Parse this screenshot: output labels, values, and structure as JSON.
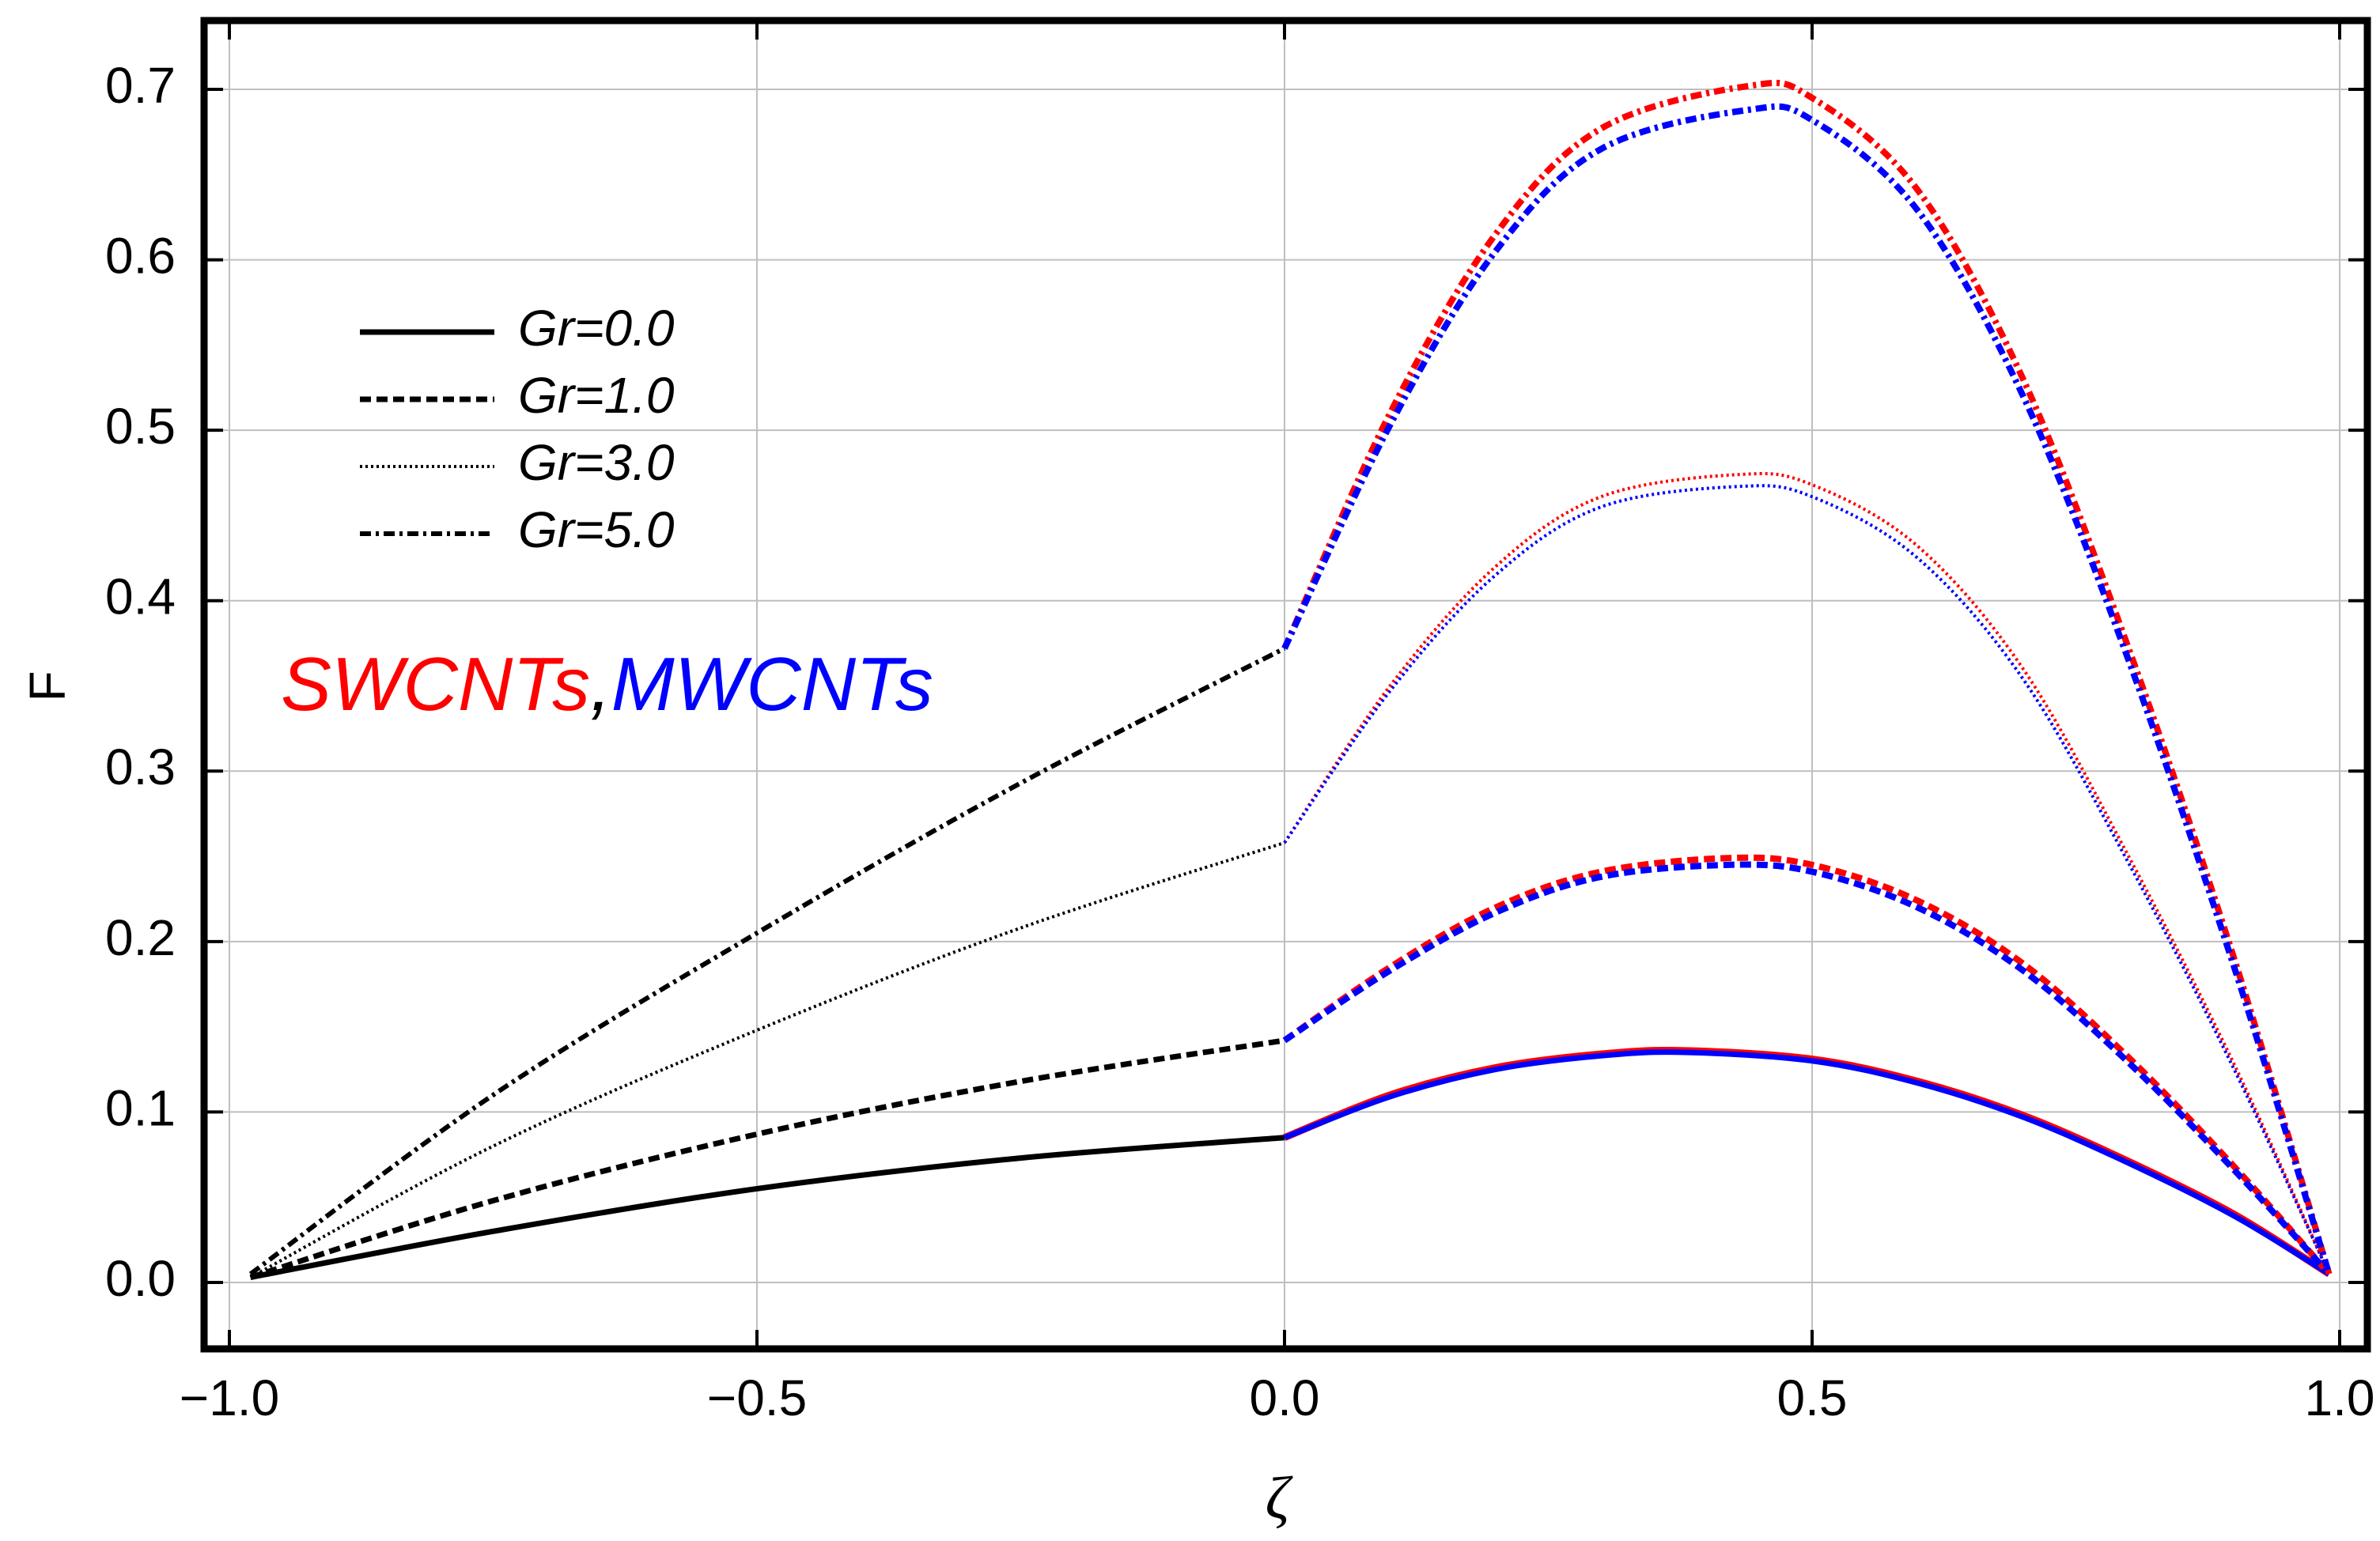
{
  "chart_data": {
    "type": "line",
    "xlabel": "ζ",
    "ylabel": "F",
    "xlim": [
      -1.0,
      1.0
    ],
    "ylim": [
      -0.04,
      0.72
    ],
    "xticks": [
      -1.0,
      -0.5,
      0.0,
      0.5,
      1.0
    ],
    "xtick_labels": [
      "−1.0",
      "−0.5",
      "0.0",
      "0.5",
      "1.0"
    ],
    "yticks": [
      0.0,
      0.1,
      0.2,
      0.3,
      0.4,
      0.5,
      0.6,
      0.7
    ],
    "ytick_labels": [
      "0.0",
      "0.1",
      "0.2",
      "0.3",
      "0.4",
      "0.5",
      "0.6",
      "0.7"
    ],
    "grid": true,
    "legend_position": "top-left",
    "legend": [
      {
        "label": "Gr=0.0",
        "style": "solid"
      },
      {
        "label": "Gr=1.0",
        "style": "dashed"
      },
      {
        "label": "Gr=3.0",
        "style": "dotted"
      },
      {
        "label": "Gr=5.0",
        "style": "dashdot"
      }
    ],
    "annotation": {
      "swcnts": "SWCNTs",
      "separator": ",",
      "mwcnts": "MWCNTs"
    },
    "colors": {
      "fluid": "#000000",
      "swcnts": "#ff0000",
      "mwcnts": "#0000ff"
    },
    "series": [
      {
        "name": "Gr=0.0 fluid region",
        "style": "solid",
        "color": "#000000",
        "width": 7,
        "x": [
          -0.98,
          -0.75,
          -0.5,
          -0.25,
          0.0
        ],
        "y": [
          0.003,
          0.03,
          0.055,
          0.073,
          0.085
        ]
      },
      {
        "name": "Gr=1.0 fluid region",
        "style": "dashed",
        "color": "#000000",
        "width": 7,
        "x": [
          -0.98,
          -0.75,
          -0.5,
          -0.25,
          0.0
        ],
        "y": [
          0.003,
          0.048,
          0.087,
          0.118,
          0.142
        ]
      },
      {
        "name": "Gr=3.0 fluid region",
        "style": "dotted",
        "color": "#000000",
        "width": 4,
        "x": [
          -0.98,
          -0.75,
          -0.5,
          -0.25,
          0.0
        ],
        "y": [
          0.003,
          0.08,
          0.148,
          0.208,
          0.258
        ]
      },
      {
        "name": "Gr=5.0 fluid region",
        "style": "dashdot",
        "color": "#000000",
        "width": 6,
        "x": [
          -0.98,
          -0.75,
          -0.5,
          -0.25,
          0.0
        ],
        "y": [
          0.005,
          0.11,
          0.205,
          0.293,
          0.372
        ]
      },
      {
        "name": "Gr=0.0 SWCNTs",
        "style": "solid",
        "color": "#ff0000",
        "width": 9,
        "x": [
          0.0,
          0.1,
          0.2,
          0.3,
          0.38,
          0.5,
          0.6,
          0.7,
          0.8,
          0.9,
          0.99
        ],
        "y": [
          0.085,
          0.11,
          0.126,
          0.134,
          0.136,
          0.131,
          0.118,
          0.098,
          0.071,
          0.04,
          0.005
        ]
      },
      {
        "name": "Gr=0.0 MWCNTs",
        "style": "solid",
        "color": "#0000ff",
        "width": 7,
        "x": [
          0.0,
          0.1,
          0.2,
          0.3,
          0.38,
          0.5,
          0.6,
          0.7,
          0.8,
          0.9,
          0.99
        ],
        "y": [
          0.085,
          0.109,
          0.125,
          0.133,
          0.135,
          0.13,
          0.117,
          0.097,
          0.07,
          0.039,
          0.005
        ]
      },
      {
        "name": "Gr=1.0 SWCNTs",
        "style": "dashed",
        "color": "#ff0000",
        "width": 8,
        "x": [
          0.0,
          0.1,
          0.2,
          0.3,
          0.42,
          0.5,
          0.6,
          0.7,
          0.8,
          0.9,
          0.99
        ],
        "y": [
          0.142,
          0.185,
          0.22,
          0.241,
          0.249,
          0.245,
          0.224,
          0.187,
          0.132,
          0.068,
          0.005
        ]
      },
      {
        "name": "Gr=1.0 MWCNTs",
        "style": "dashed",
        "color": "#0000ff",
        "width": 8,
        "x": [
          0.0,
          0.1,
          0.2,
          0.3,
          0.42,
          0.5,
          0.6,
          0.7,
          0.8,
          0.9,
          0.99
        ],
        "y": [
          0.142,
          0.183,
          0.217,
          0.238,
          0.245,
          0.241,
          0.22,
          0.183,
          0.129,
          0.066,
          0.005
        ]
      },
      {
        "name": "Gr=3.0 SWCNTs",
        "style": "dotted",
        "color": "#ff0000",
        "width": 4,
        "x": [
          0.0,
          0.1,
          0.2,
          0.3,
          0.43,
          0.5,
          0.6,
          0.7,
          0.8,
          0.9,
          0.99
        ],
        "y": [
          0.258,
          0.35,
          0.42,
          0.461,
          0.474,
          0.468,
          0.432,
          0.36,
          0.25,
          0.128,
          0.005
        ]
      },
      {
        "name": "Gr=3.0 MWCNTs",
        "style": "dotted",
        "color": "#0000ff",
        "width": 4,
        "x": [
          0.0,
          0.1,
          0.2,
          0.3,
          0.43,
          0.5,
          0.6,
          0.7,
          0.8,
          0.9,
          0.99
        ],
        "y": [
          0.258,
          0.347,
          0.415,
          0.455,
          0.467,
          0.461,
          0.425,
          0.354,
          0.246,
          0.125,
          0.005
        ]
      },
      {
        "name": "Gr=5.0 SWCNTs",
        "style": "dashdot",
        "color": "#ff0000",
        "width": 8,
        "x": [
          0.0,
          0.1,
          0.2,
          0.3,
          0.44,
          0.5,
          0.6,
          0.7,
          0.8,
          0.9,
          0.99
        ],
        "y": [
          0.372,
          0.51,
          0.615,
          0.677,
          0.702,
          0.695,
          0.641,
          0.53,
          0.372,
          0.19,
          0.005
        ]
      },
      {
        "name": "Gr=5.0 MWCNTs",
        "style": "dashdot",
        "color": "#0000ff",
        "width": 8,
        "x": [
          0.0,
          0.1,
          0.2,
          0.3,
          0.44,
          0.5,
          0.6,
          0.7,
          0.8,
          0.9,
          0.99
        ],
        "y": [
          0.372,
          0.503,
          0.605,
          0.665,
          0.688,
          0.682,
          0.629,
          0.52,
          0.365,
          0.185,
          0.005
        ]
      }
    ]
  }
}
